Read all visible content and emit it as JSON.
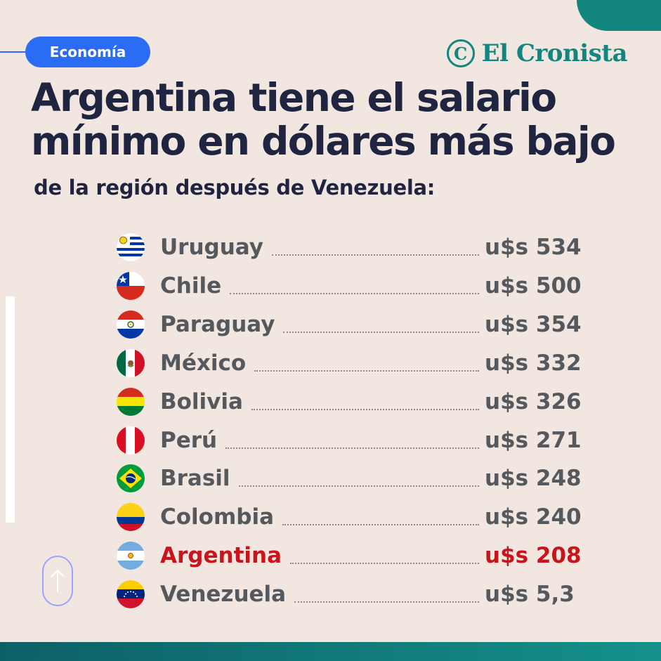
{
  "header": {
    "tag_label": "Economía",
    "brand_name": "El Cronista",
    "title": "Argentina tiene el salario mínimo en dólares más bajo",
    "subtitle": "de la región después de Venezuela:"
  },
  "colors": {
    "background": "#f1e7e0",
    "accent_teal": "#12867e",
    "tag_blue": "#2a6df4",
    "title_navy": "#1f2540",
    "row_gray": "#55585d",
    "highlight_red": "#c8141b"
  },
  "chart_data": {
    "type": "table",
    "title": "Argentina tiene el salario mínimo en dólares más bajo",
    "subtitle": "de la región después de Venezuela:",
    "currency_prefix": "u$s",
    "highlight": "Argentina",
    "rows": [
      {
        "country": "Uruguay",
        "flag_icon": "uruguay-flag-icon",
        "value": 534,
        "label": "u$s 534"
      },
      {
        "country": "Chile",
        "flag_icon": "chile-flag-icon",
        "value": 500,
        "label": "u$s 500"
      },
      {
        "country": "Paraguay",
        "flag_icon": "paraguay-flag-icon",
        "value": 354,
        "label": "u$s 354"
      },
      {
        "country": "México",
        "flag_icon": "mexico-flag-icon",
        "value": 332,
        "label": "u$s 332"
      },
      {
        "country": "Bolivia",
        "flag_icon": "bolivia-flag-icon",
        "value": 326,
        "label": "u$s 326"
      },
      {
        "country": "Perú",
        "flag_icon": "peru-flag-icon",
        "value": 271,
        "label": "u$s 271"
      },
      {
        "country": "Brasil",
        "flag_icon": "brasil-flag-icon",
        "value": 248,
        "label": "u$s 248"
      },
      {
        "country": "Colombia",
        "flag_icon": "colombia-flag-icon",
        "value": 240,
        "label": "u$s 240"
      },
      {
        "country": "Argentina",
        "flag_icon": "argentina-flag-icon",
        "value": 208,
        "label": "u$s 208"
      },
      {
        "country": "Venezuela",
        "flag_icon": "venezuela-flag-icon",
        "value": 5.3,
        "label": "u$s 5,3"
      }
    ]
  },
  "icons": {
    "brand": "cronista-logo-icon",
    "scroll_up": "arrow-up-icon"
  }
}
